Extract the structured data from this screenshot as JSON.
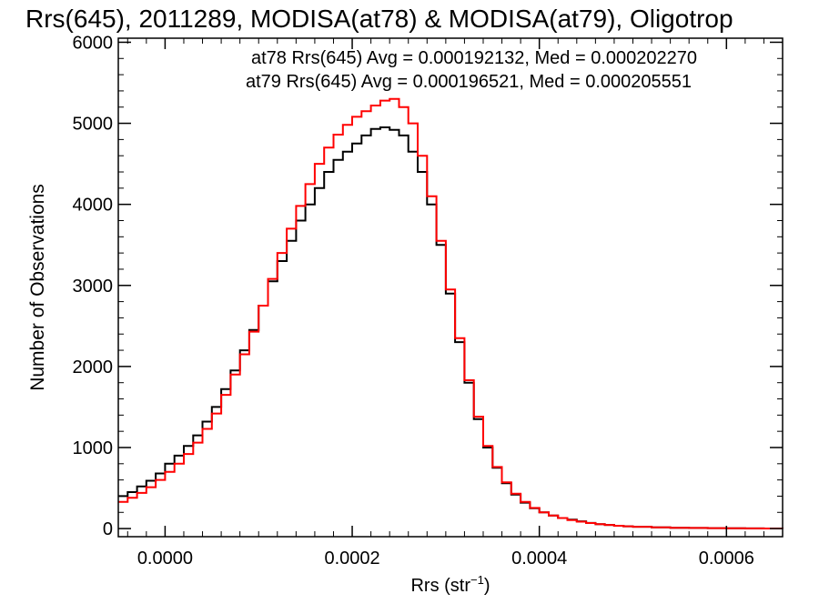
{
  "chart_data": {
    "type": "line",
    "title": "Rrs(645), 2011289, MODISA(at78) & MODISA(at79), Oligotrop",
    "xlabel_main": "Rrs (str",
    "xlabel_sup": "−1",
    "xlabel_close": ")",
    "ylabel": "Number of Observations",
    "xlim": [
      -5e-05,
      0.00066
    ],
    "ylim": [
      -100,
      6050
    ],
    "x_ticks": [
      0.0,
      0.0002,
      0.0004,
      0.0006
    ],
    "x_tick_labels": [
      "0.0000",
      "0.0002",
      "0.0004",
      "0.0006"
    ],
    "y_ticks": [
      0,
      1000,
      2000,
      3000,
      4000,
      5000,
      6000
    ],
    "y_tick_labels": [
      "0",
      "1000",
      "2000",
      "3000",
      "4000",
      "5000",
      "6000"
    ],
    "annotations": [
      {
        "text": "at78 Rrs(645) Avg = 0.000192132, Med = 0.000202270",
        "color": "#000000"
      },
      {
        "text": "at79 Rrs(645) Avg = 0.000196521, Med = 0.000205551",
        "color": "#ff0000"
      }
    ],
    "series": [
      {
        "color": "#000000",
        "x": [
          -5e-05,
          -4e-05,
          -3e-05,
          -2e-05,
          -1e-05,
          0.0,
          1e-05,
          2e-05,
          3e-05,
          4e-05,
          5e-05,
          6e-05,
          7e-05,
          8e-05,
          9e-05,
          0.0001,
          0.00011,
          0.00012,
          0.00013,
          0.00014,
          0.00015,
          0.00016,
          0.00017,
          0.00018,
          0.00019,
          0.0002,
          0.00021,
          0.00022,
          0.00023,
          0.00024,
          0.00025,
          0.00026,
          0.00027,
          0.00028,
          0.00029,
          0.0003,
          0.00031,
          0.00032,
          0.00033,
          0.00034,
          0.00035,
          0.00036,
          0.00037,
          0.00038,
          0.00039,
          0.0004,
          0.00041,
          0.00042,
          0.00043,
          0.00044,
          0.00045,
          0.00046,
          0.00047,
          0.00048,
          0.00049,
          0.0005,
          0.00052,
          0.00054,
          0.00056,
          0.00058,
          0.0006,
          0.00062,
          0.00064,
          0.00066
        ],
        "y": [
          400,
          450,
          520,
          590,
          680,
          800,
          900,
          1020,
          1150,
          1320,
          1500,
          1720,
          1950,
          2200,
          2450,
          2750,
          3050,
          3300,
          3550,
          3800,
          4000,
          4200,
          4400,
          4550,
          4650,
          4750,
          4850,
          4930,
          4950,
          4920,
          4850,
          4650,
          4400,
          4000,
          3500,
          2900,
          2300,
          1800,
          1350,
          1000,
          750,
          560,
          420,
          320,
          250,
          200,
          160,
          130,
          110,
          90,
          70,
          55,
          45,
          35,
          28,
          22,
          15,
          10,
          8,
          5,
          3,
          2,
          1,
          0
        ]
      },
      {
        "color": "#ff0000",
        "x": [
          -5e-05,
          -4e-05,
          -3e-05,
          -2e-05,
          -1e-05,
          0.0,
          1e-05,
          2e-05,
          3e-05,
          4e-05,
          5e-05,
          6e-05,
          7e-05,
          8e-05,
          9e-05,
          0.0001,
          0.00011,
          0.00012,
          0.00013,
          0.00014,
          0.00015,
          0.00016,
          0.00017,
          0.00018,
          0.00019,
          0.0002,
          0.00021,
          0.00022,
          0.00023,
          0.00024,
          0.00025,
          0.00026,
          0.00027,
          0.00028,
          0.00029,
          0.0003,
          0.00031,
          0.00032,
          0.00033,
          0.00034,
          0.00035,
          0.00036,
          0.00037,
          0.00038,
          0.00039,
          0.0004,
          0.00041,
          0.00042,
          0.00043,
          0.00044,
          0.00045,
          0.00046,
          0.00047,
          0.00048,
          0.00049,
          0.0005,
          0.00052,
          0.00054,
          0.00056,
          0.00058,
          0.0006,
          0.00062,
          0.00064,
          0.00066
        ],
        "y": [
          330,
          380,
          440,
          510,
          600,
          700,
          800,
          920,
          1060,
          1230,
          1420,
          1650,
          1900,
          2150,
          2430,
          2750,
          3080,
          3400,
          3700,
          3980,
          4250,
          4500,
          4700,
          4860,
          4980,
          5080,
          5150,
          5220,
          5280,
          5300,
          5200,
          5000,
          4600,
          4100,
          3550,
          2950,
          2350,
          1830,
          1380,
          1020,
          760,
          570,
          430,
          330,
          255,
          200,
          160,
          130,
          105,
          85,
          68,
          55,
          45,
          35,
          28,
          22,
          15,
          10,
          8,
          5,
          3,
          2,
          1,
          0
        ]
      }
    ]
  }
}
